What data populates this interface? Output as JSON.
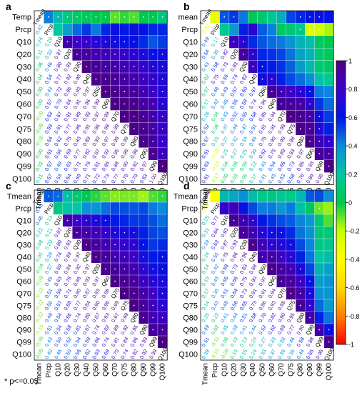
{
  "figure": {
    "footnote": "* p<=0.05",
    "variables": [
      "Tmean",
      "Prcp",
      "Q10",
      "Q20",
      "Q30",
      "Q40",
      "Q50",
      "Q60",
      "Q70",
      "Q75",
      "Q80",
      "Q90",
      "Q99",
      "Q100"
    ],
    "row_labels_a": [
      "Temp",
      "Prcp",
      "Q10",
      "Q20",
      "Q30",
      "Q40",
      "Q50",
      "Q60",
      "Q70",
      "Q75",
      "Q80",
      "Q90",
      "Q99",
      "Q100"
    ],
    "row_labels_b": [
      "mean",
      "Prcp",
      "Q10",
      "Q20",
      "Q30",
      "Q40",
      "Q50",
      "Q60",
      "Q70",
      "Q75",
      "Q80",
      "Q90",
      "Q99",
      "Q100"
    ]
  },
  "chart_data": {
    "type": "heatmap",
    "colorbar": {
      "min": -1,
      "max": 1,
      "ticks": [
        "1",
        "0.8",
        "0.6",
        "0.4",
        "0.2",
        "0",
        "-0.2",
        "-0.4",
        "-0.6",
        "-0.8",
        "-1"
      ],
      "colors": [
        "#ff0000",
        "#ff8000",
        "#ffd700",
        "#ffff00",
        "#c8ff00",
        "#00c850",
        "#00c8a0",
        "#0a8cdc",
        "#0014e6",
        "#3c00c8",
        "#4b0082"
      ]
    },
    "panels": [
      {
        "label": "a",
        "lower": [
          [],
          [
            0.42
          ],
          [
            0.24,
            0.2
          ],
          [
            0.11,
            0.33,
            0.87
          ],
          [
            0.06,
            0.46,
            0.8,
            0.93
          ],
          [
            0.04,
            0.54,
            0.77,
            0.92,
            0.98
          ],
          [
            0.0,
            0.43,
            0.72,
            0.86,
            0.93,
            0.97
          ],
          [
            0.0,
            0.57,
            0.7,
            0.84,
            0.91,
            0.96,
            0.99
          ],
          [
            -0.09,
            0.63,
            0.67,
            0.81,
            0.89,
            0.93,
            0.97,
            0.99
          ],
          [
            -0.05,
            0.59,
            0.61,
            0.77,
            0.86,
            0.91,
            0.95,
            0.98,
            0.99
          ],
          [
            -0.08,
            0.64,
            0.62,
            0.75,
            0.83,
            0.89,
            0.93,
            0.97,
            0.99,
            0.99
          ],
          [
            0.0,
            0.61,
            0.56,
            0.69,
            0.77,
            0.82,
            0.87,
            0.92,
            0.95,
            0.96,
            0.98
          ],
          [
            0.01,
            0.57,
            0.49,
            0.63,
            0.71,
            0.76,
            0.81,
            0.86,
            0.88,
            0.9,
            0.92,
            0.97
          ],
          [
            0.11,
            0.57,
            0.53,
            0.64,
            0.69,
            0.71,
            0.72,
            0.73,
            0.77,
            0.78,
            0.79,
            0.83,
            1.0
          ]
        ],
        "upper": [
          [
            null,
            0.42,
            0.24,
            0.11,
            0.06,
            0.04,
            0.0,
            0.0,
            -0.09,
            -0.05,
            -0.08,
            0.0,
            0.01,
            0.11
          ],
          [
            null,
            null,
            0.2,
            0.33,
            0.46,
            0.54,
            0.43,
            0.57,
            0.63,
            0.59,
            0.64,
            0.61,
            0.57,
            0.57
          ]
        ],
        "upper_sig": [
          [
            false,
            true,
            true,
            true,
            true,
            true,
            true,
            true,
            true,
            true,
            true,
            true,
            true,
            true
          ],
          [
            false,
            false,
            false,
            false,
            false,
            false,
            false,
            false,
            false,
            false,
            false,
            false,
            false,
            false
          ]
        ]
      },
      {
        "label": "b",
        "lower": [
          [],
          [
            -0.32
          ],
          [
            0.49,
            0.17
          ],
          [
            0.54,
            0.35,
            0.82
          ],
          [
            0.43,
            0.58,
            0.73,
            0.93
          ],
          [
            0.02,
            0.75,
            0.56,
            0.74,
            0.82
          ],
          [
            0.07,
            0.48,
            0.49,
            0.57,
            0.6,
            0.67
          ],
          [
            0.17,
            0.42,
            0.45,
            0.55,
            0.59,
            0.74,
            0.96
          ],
          [
            0.28,
            0.04,
            0.43,
            0.52,
            0.55,
            0.58,
            0.85,
            0.94
          ],
          [
            0.52,
            0.08,
            0.37,
            0.44,
            0.47,
            0.51,
            0.81,
            0.91,
            0.98
          ],
          [
            0.57,
            0.15,
            0.27,
            0.32,
            0.34,
            0.45,
            0.75,
            0.9,
            0.96,
            0.98
          ],
          [
            0.61,
            -0.28,
            0.23,
            0.27,
            0.25,
            0.39,
            0.62,
            0.75,
            0.89,
            0.93,
            0.97
          ],
          [
            0.63,
            -0.24,
            0.04,
            0.08,
            0.09,
            0.22,
            0.43,
            0.54,
            0.66,
            0.73,
            0.85,
            0.93
          ],
          [
            0.61,
            -0.17,
            0.0,
            0.03,
            0.06,
            0.17,
            0.41,
            0.45,
            0.53,
            0.58,
            0.76,
            0.89,
            0.98
          ]
        ],
        "upper": [
          [
            null,
            -0.32,
            0.49,
            0.54,
            0.43,
            0.02,
            0.07,
            0.17,
            0.28,
            0.52,
            0.57,
            0.61,
            0.63,
            0.61
          ],
          [
            null,
            null,
            0.17,
            0.35,
            0.58,
            0.75,
            0.48,
            0.42,
            0.04,
            0.08,
            0.15,
            -0.28,
            -0.24,
            -0.17
          ]
        ],
        "upper_sig": [
          [
            false,
            false,
            true,
            true,
            false,
            false,
            false,
            false,
            false,
            false,
            true,
            true,
            true,
            false
          ],
          [
            false,
            false,
            false,
            false,
            false,
            false,
            false,
            false,
            false,
            false,
            true,
            true,
            true,
            false
          ]
        ]
      },
      {
        "label": "c",
        "lower": [
          [],
          [
            0.48
          ],
          [
            0.46,
            0.13
          ],
          [
            0.22,
            0.21,
            0.87
          ],
          [
            0.08,
            0.2,
            0.8,
            0.93
          ],
          [
            0.01,
            0.39,
            0.74,
            0.89,
            0.97
          ],
          [
            -0.04,
            0.37,
            0.69,
            0.84,
            0.92,
            0.97
          ],
          [
            -0.09,
            0.45,
            0.63,
            0.78,
            0.86,
            0.93,
            0.97
          ],
          [
            -0.13,
            0.51,
            0.59,
            0.71,
            0.8,
            0.87,
            0.93,
            0.98
          ],
          [
            -0.12,
            0.5,
            0.57,
            0.68,
            0.77,
            0.84,
            0.9,
            0.96,
            0.99
          ],
          [
            -0.12,
            0.49,
            0.54,
            0.66,
            0.74,
            0.8,
            0.87,
            0.93,
            0.97,
            0.99
          ],
          [
            -0.16,
            0.51,
            0.54,
            0.58,
            0.61,
            0.67,
            0.74,
            0.82,
            0.89,
            0.92,
            0.95
          ],
          [
            -0.08,
            0.43,
            0.5,
            0.52,
            0.54,
            0.59,
            0.66,
            0.74,
            0.81,
            0.84,
            0.86,
            0.93
          ],
          [
            -0.05,
            0.4,
            0.45,
            0.5,
            0.56,
            0.62,
            0.63,
            0.69,
            0.7,
            0.74,
            0.82,
            0.92,
            0.99
          ]
        ],
        "upper": [
          [
            null,
            0.48,
            0.46,
            0.22,
            0.08,
            0.01,
            -0.04,
            -0.09,
            -0.13,
            -0.12,
            -0.12,
            -0.16,
            -0.08,
            -0.05
          ],
          [
            null,
            null,
            0.13,
            0.21,
            0.2,
            0.39,
            0.37,
            0.45,
            0.51,
            0.5,
            0.49,
            0.51,
            0.43,
            0.4
          ]
        ],
        "upper_sig": [
          [
            false,
            true,
            true,
            true,
            true,
            true,
            true,
            true,
            true,
            true,
            true,
            true,
            true,
            true
          ],
          [
            false,
            false,
            false,
            false,
            false,
            false,
            false,
            false,
            false,
            false,
            false,
            false,
            false,
            false
          ]
        ]
      },
      {
        "label": "d",
        "lower": [
          [],
          [
            -0.39
          ],
          [
            0.25,
            0.77
          ],
          [
            0.31,
            0.84,
            0.93
          ],
          [
            0.39,
            0.63,
            0.87,
            0.93
          ],
          [
            0.24,
            0.51,
            0.75,
            0.86,
            0.96
          ],
          [
            0.14,
            0.42,
            0.59,
            0.73,
            0.83,
            0.88
          ],
          [
            0.13,
            0.43,
            0.55,
            0.66,
            0.75,
            0.9,
            0.97
          ],
          [
            0.17,
            0.36,
            0.51,
            0.64,
            0.73,
            0.81,
            0.91,
            0.94
          ],
          [
            0.14,
            0.43,
            0.48,
            0.56,
            0.65,
            0.73,
            0.86,
            0.93,
            0.98
          ],
          [
            0.25,
            0.23,
            0.41,
            0.44,
            0.51,
            0.58,
            0.7,
            0.82,
            0.9,
            0.95
          ],
          [
            0.49,
            0.02,
            0.35,
            0.38,
            0.41,
            0.44,
            0.52,
            0.62,
            0.69,
            0.77,
            0.9
          ],
          [
            0.51,
            -0.11,
            0.08,
            0.1,
            0.13,
            0.2,
            0.27,
            0.33,
            0.38,
            0.46,
            0.58,
            0.88
          ],
          [
            0.39,
            -0.15,
            -0.08,
            0.1,
            0.15,
            0.24,
            0.33,
            0.37,
            0.36,
            0.35,
            0.44,
            0.65,
            0.95
          ]
        ],
        "upper": [
          [
            null,
            -0.39,
            0.25,
            0.31,
            0.39,
            0.24,
            0.14,
            0.13,
            0.17,
            0.14,
            0.25,
            0.49,
            0.51,
            0.39
          ],
          [
            null,
            null,
            0.77,
            0.84,
            0.63,
            0.51,
            0.42,
            0.43,
            0.36,
            0.43,
            0.23,
            0.02,
            -0.11,
            -0.15
          ]
        ],
        "upper_sig": [
          [
            false,
            false,
            false,
            false,
            false,
            false,
            false,
            false,
            false,
            false,
            false,
            false,
            false,
            false
          ],
          [
            false,
            false,
            false,
            false,
            false,
            false,
            false,
            false,
            false,
            false,
            false,
            false,
            true,
            false
          ]
        ]
      }
    ]
  }
}
